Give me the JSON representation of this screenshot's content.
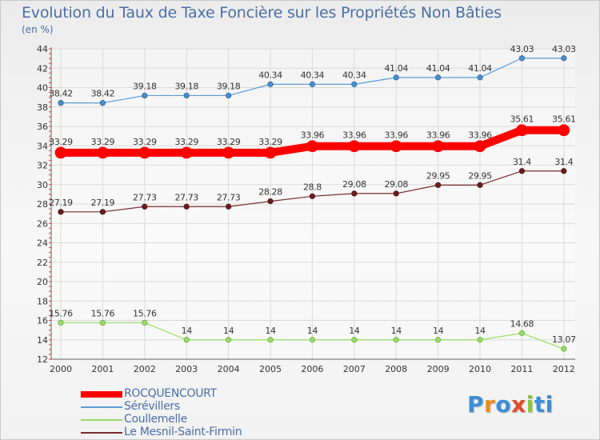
{
  "chart_data": {
    "type": "line",
    "title": "Evolution du Taux de Taxe Foncière sur les Propriétés Non Bâties",
    "subtitle": "(en %)",
    "xlabel": "",
    "ylabel": "",
    "x": [
      "2000",
      "2001",
      "2002",
      "2003",
      "2004",
      "2005",
      "2006",
      "2007",
      "2008",
      "2009",
      "2010",
      "2011",
      "2012"
    ],
    "ylim": [
      12,
      44
    ],
    "yticks": [
      12,
      14,
      16,
      18,
      20,
      22,
      24,
      26,
      28,
      30,
      32,
      34,
      36,
      38,
      40,
      42,
      44
    ],
    "grid": true,
    "series": [
      {
        "name": "ROCQUENCOURT",
        "color": "#ff0000",
        "values": [
          33.29,
          33.29,
          33.29,
          33.29,
          33.29,
          33.29,
          33.96,
          33.96,
          33.96,
          33.96,
          33.96,
          35.61,
          35.61
        ],
        "labels": [
          "33.29",
          "33.29",
          "33.29",
          "33.29",
          "33.29",
          "33.29",
          "33.96",
          "33.96",
          "33.96",
          "33.96",
          "33.96",
          "35.61",
          "35.61"
        ]
      },
      {
        "name": "Sérévillers",
        "color": "#5b9bd5",
        "values": [
          38.42,
          38.42,
          39.18,
          39.18,
          39.18,
          40.34,
          40.34,
          40.34,
          41.04,
          41.04,
          41.04,
          43.03,
          43.03
        ],
        "labels": [
          "38.42",
          "38.42",
          "39.18",
          "39.18",
          "39.18",
          "40.34",
          "40.34",
          "40.34",
          "41.04",
          "41.04",
          "41.04",
          "43.03",
          "43.03"
        ]
      },
      {
        "name": "Coullemelle",
        "color": "#99dd66",
        "values": [
          15.76,
          15.76,
          15.76,
          14,
          14,
          14,
          14,
          14,
          14,
          14,
          14,
          14.68,
          13.07
        ],
        "labels": [
          "15.76",
          "15.76",
          "15.76",
          "14",
          "14",
          "14",
          "14",
          "14",
          "14",
          "14",
          "14",
          "14.68",
          "13.07"
        ]
      },
      {
        "name": "Le Mesnil-Saint-Firmin",
        "color": "#7a2c2c",
        "values": [
          27.19,
          27.19,
          27.73,
          27.73,
          27.73,
          28.28,
          28.8,
          29.08,
          29.08,
          29.95,
          29.95,
          31.4,
          31.4
        ],
        "labels": [
          "27.19",
          "27.19",
          "27.73",
          "27.73",
          "27.73",
          "28.28",
          "28.8",
          "29.08",
          "29.08",
          "29.95",
          "29.95",
          "31.4",
          "31.4"
        ]
      }
    ]
  },
  "legend": {
    "items": [
      {
        "label": "ROCQUENCOURT",
        "color": "#ff0000"
      },
      {
        "label": "Sérévillers",
        "color": "#5b9bd5"
      },
      {
        "label": "Coullemelle",
        "color": "#99dd66"
      },
      {
        "label": "Le Mesnil-Saint-Firmin",
        "color": "#7a2c2c"
      }
    ]
  },
  "logo": {
    "text": "Proxiti"
  }
}
